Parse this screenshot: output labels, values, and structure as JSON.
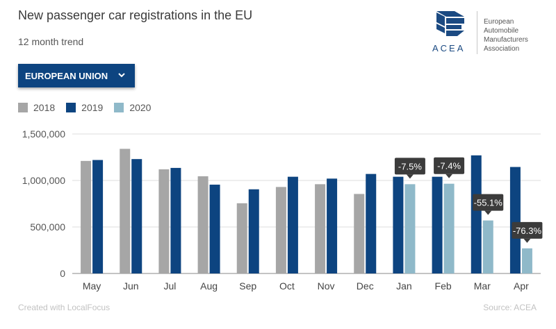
{
  "header": {
    "title": "New passenger car registrations in the EU",
    "subtitle": "12 month trend"
  },
  "logo": {
    "word": "ACEA",
    "org_lines": [
      "European",
      "Automobile",
      "Manufacturers",
      "Association"
    ],
    "color": "#1b4a82"
  },
  "dropdown": {
    "label": "EUROPEAN UNION",
    "icon": "chevron-down-icon",
    "color": "#0d4480"
  },
  "footer": {
    "credit": "Created with LocalFocus",
    "source": "Source: ACEA"
  },
  "chart_data": {
    "type": "bar",
    "categories": [
      "May",
      "Jun",
      "Jul",
      "Aug",
      "Sep",
      "Oct",
      "Nov",
      "Dec",
      "Jan",
      "Feb",
      "Mar",
      "Apr"
    ],
    "series": [
      {
        "name": "2018",
        "color": "#a6a6a6",
        "values": [
          1210000,
          1340000,
          1120000,
          1045000,
          755000,
          930000,
          960000,
          855000,
          null,
          null,
          null,
          null
        ]
      },
      {
        "name": "2019",
        "color": "#0d4480",
        "values": [
          1220000,
          1230000,
          1135000,
          955000,
          905000,
          1040000,
          1020000,
          1070000,
          1040000,
          1040000,
          1270000,
          1145000
        ]
      },
      {
        "name": "2020",
        "color": "#8fb9c9",
        "values": [
          null,
          null,
          null,
          null,
          null,
          null,
          null,
          null,
          960000,
          965000,
          570000,
          270000
        ]
      }
    ],
    "annotations": [
      {
        "category": "Jan",
        "series": "2020",
        "label": "-7.5%"
      },
      {
        "category": "Feb",
        "series": "2020",
        "label": "-7.4%"
      },
      {
        "category": "Mar",
        "series": "2020",
        "label": "-55.1%"
      },
      {
        "category": "Apr",
        "series": "2020",
        "label": "-76.3%"
      }
    ],
    "yticks": [
      0,
      500000,
      1000000,
      1500000
    ],
    "ytick_labels": [
      "0",
      "500,000",
      "1,000,000",
      "1,500,000"
    ],
    "ylim": [
      0,
      1500000
    ],
    "grid": true,
    "legend": "top-left"
  }
}
